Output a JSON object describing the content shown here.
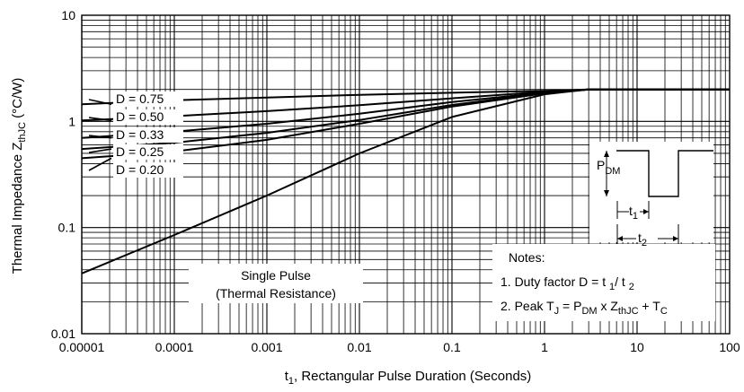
{
  "chart_data": {
    "type": "line",
    "title": "",
    "xscale": "log",
    "yscale": "log",
    "xlim": [
      1e-05,
      100
    ],
    "ylim": [
      0.01,
      10
    ],
    "grid": true,
    "x_ticks": [
      "0.00001",
      "0.0001",
      "0.001",
      "0.01",
      "0.1",
      "1",
      "10",
      "100"
    ],
    "y_ticks": [
      "0.01",
      "0.1",
      "1",
      "10"
    ],
    "xlabel": {
      "pre": "t",
      "sub": "1",
      "post": ", Rectangular Pulse Duration (Seconds)"
    },
    "ylabel": {
      "pre": "Thermal Impedance Z",
      "sub": "thJC",
      "post": " (°C/W)"
    },
    "series": [
      {
        "name": "D = 0.75",
        "x": [
          1e-05,
          0.0001,
          0.001,
          0.01,
          0.1,
          1,
          3,
          100
        ],
        "y": [
          1.45,
          1.58,
          1.68,
          1.78,
          1.86,
          1.94,
          2.0,
          2.0
        ]
      },
      {
        "name": "D = 0.50",
        "x": [
          1e-05,
          0.0001,
          0.001,
          0.01,
          0.1,
          1,
          3,
          100
        ],
        "y": [
          1.02,
          1.12,
          1.25,
          1.42,
          1.65,
          1.9,
          2.0,
          2.0
        ]
      },
      {
        "name": "D = 0.33",
        "x": [
          1e-05,
          0.0001,
          0.001,
          0.01,
          0.1,
          1,
          3,
          100
        ],
        "y": [
          0.7,
          0.8,
          0.95,
          1.18,
          1.52,
          1.87,
          2.0,
          2.0
        ]
      },
      {
        "name": "D = 0.25",
        "x": [
          1e-05,
          0.0001,
          0.001,
          0.01,
          0.1,
          1,
          3,
          100
        ],
        "y": [
          0.55,
          0.63,
          0.78,
          1.03,
          1.43,
          1.85,
          2.0,
          2.0
        ]
      },
      {
        "name": "D = 0.20",
        "x": [
          1e-05,
          0.0001,
          0.001,
          0.01,
          0.1,
          1,
          3,
          100
        ],
        "y": [
          0.45,
          0.52,
          0.67,
          0.95,
          1.38,
          1.84,
          2.0,
          2.0
        ]
      },
      {
        "name": "Single Pulse (Thermal Resistance)",
        "x": [
          1e-05,
          0.0001,
          0.001,
          0.01,
          0.1,
          1,
          3,
          100
        ],
        "y": [
          0.037,
          0.085,
          0.2,
          0.5,
          1.1,
          1.8,
          2.0,
          2.0
        ]
      }
    ],
    "single_pulse_label": [
      "Single Pulse",
      "(Thermal Resistance)"
    ],
    "notes": {
      "heading": "Notes:",
      "line1": "1. Duty factor D = t 1/ t 2",
      "line2": "2. Peak TJ = PDM x ZthJC + TC"
    },
    "waveform": {
      "pdm": "PDM",
      "t1": "t1",
      "t2": "t2"
    }
  }
}
